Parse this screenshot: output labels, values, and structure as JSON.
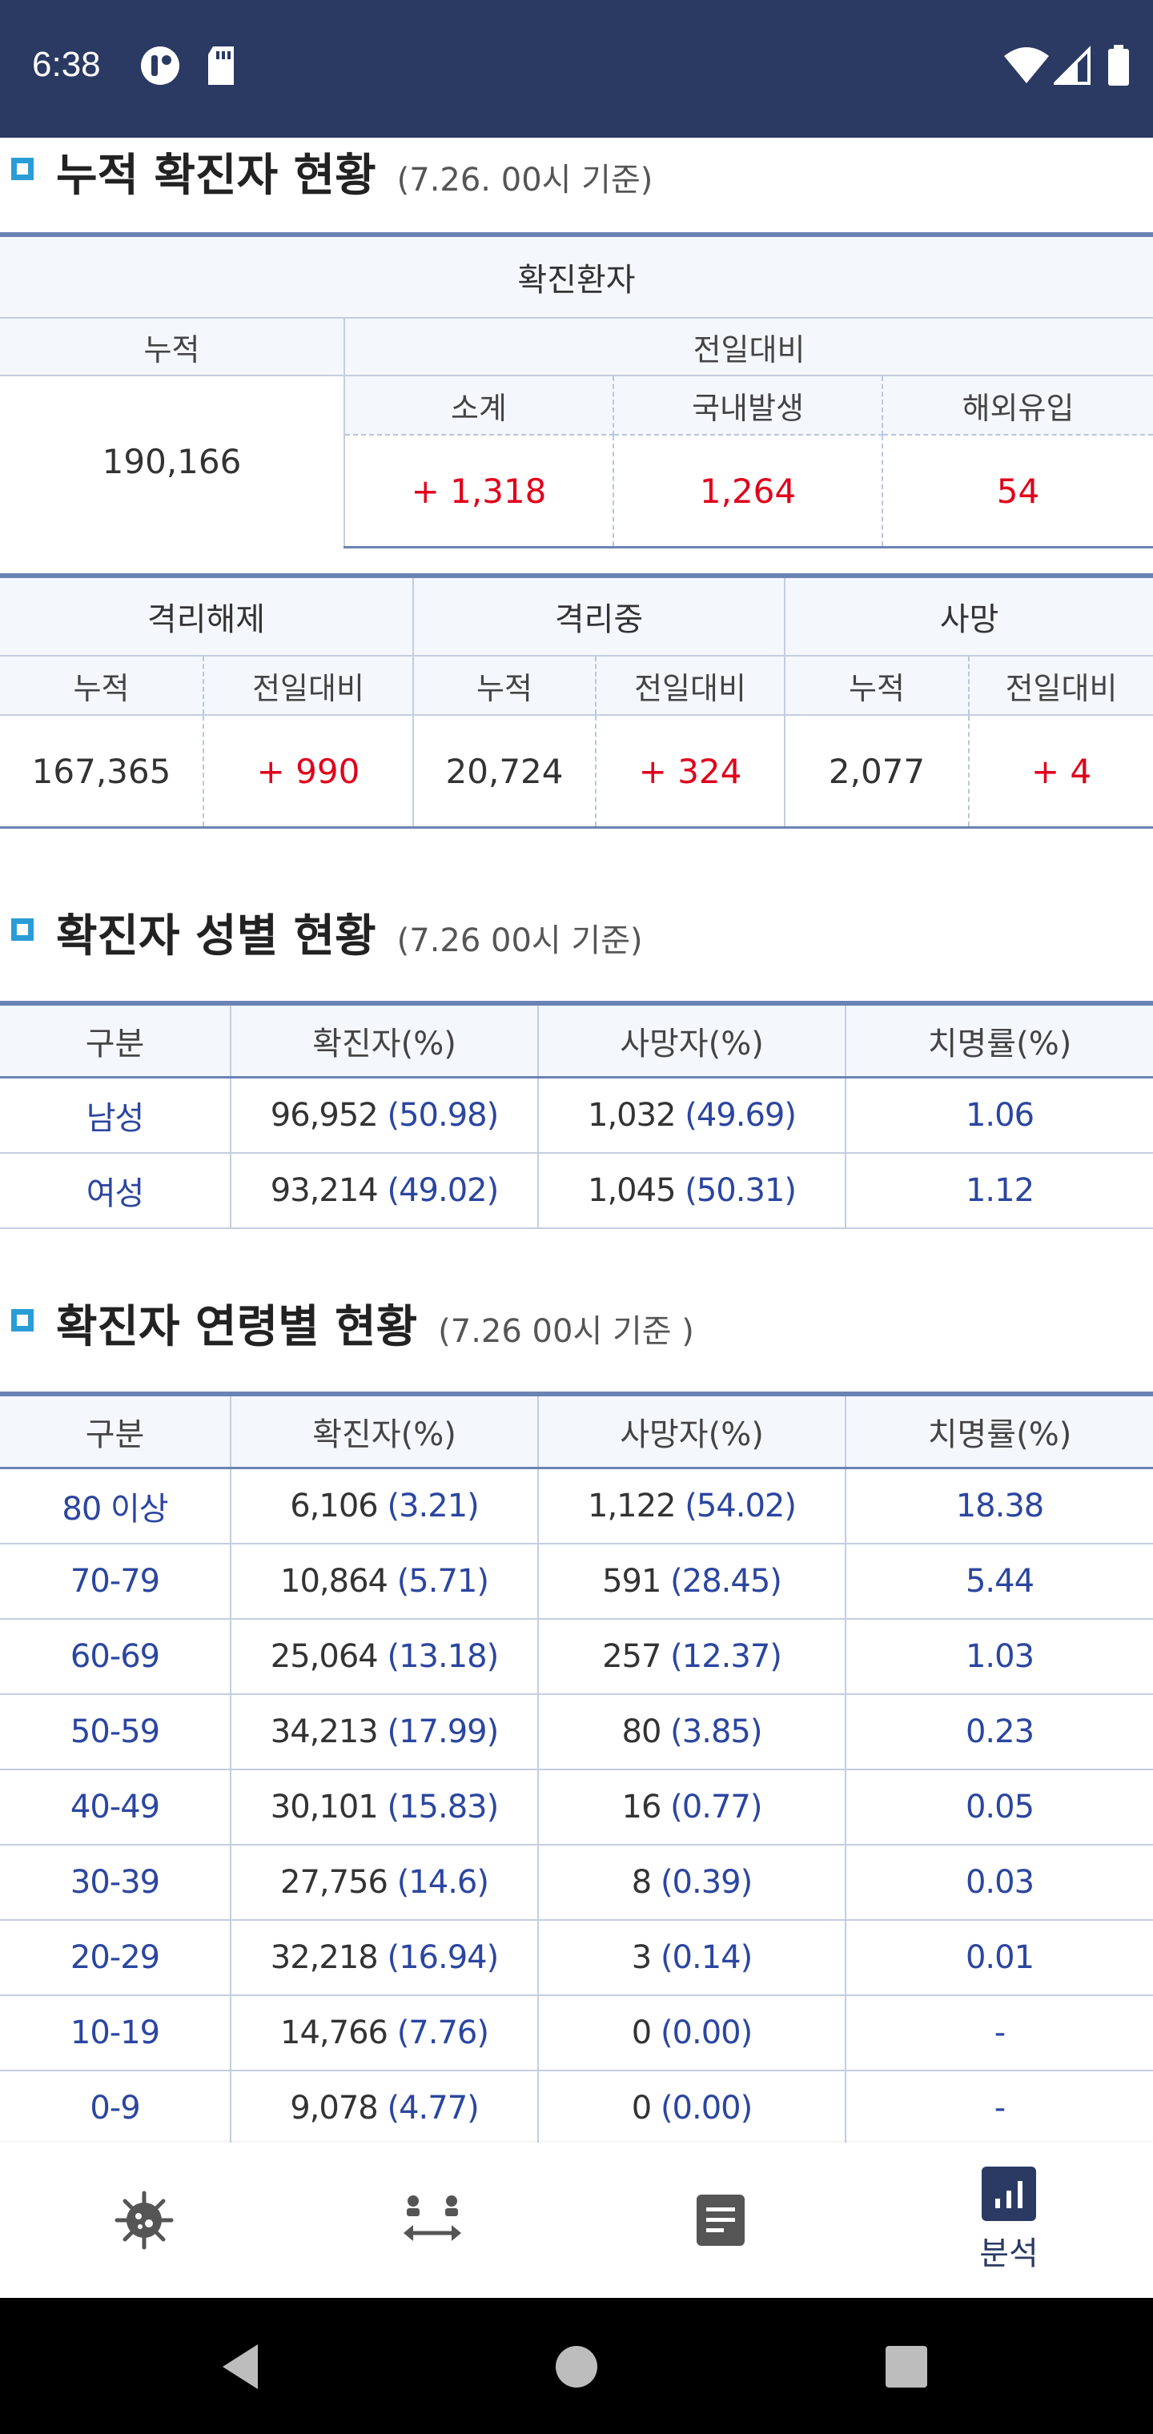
{
  "status_bar": {
    "time": "6:38"
  },
  "cumulative": {
    "title": "누적 확진자 현황",
    "date": "(7.26. 00시 기준)",
    "header": "확진환자",
    "col_cum": "누적",
    "col_prev": "전일대비",
    "col_sub": "소계",
    "col_domestic": "국내발생",
    "col_overseas": "해외유입",
    "total": "190,166",
    "sub": "+ 1,318",
    "domestic": "1,264",
    "overseas": "54"
  },
  "status": {
    "release": {
      "label": "격리해제",
      "cum": "167,365",
      "diff": "+ 990"
    },
    "isolation": {
      "label": "격리중",
      "cum": "20,724",
      "diff": "+ 324"
    },
    "death": {
      "label": "사망",
      "cum": "2,077",
      "diff": "+ 4"
    },
    "col_cum": "누적",
    "col_prev": "전일대비"
  },
  "gender": {
    "title": "확진자 성별 현황",
    "date": "(7.26 00시 기준)",
    "headers": [
      "구분",
      "확진자(%)",
      "사망자(%)",
      "치명률(%)"
    ],
    "rows": [
      {
        "label": "남성",
        "conf": "96,952",
        "conf_pct": "(50.98)",
        "death": "1,032",
        "death_pct": "(49.69)",
        "fatality": "1.06"
      },
      {
        "label": "여성",
        "conf": "93,214",
        "conf_pct": "(49.02)",
        "death": "1,045",
        "death_pct": "(50.31)",
        "fatality": "1.12"
      }
    ]
  },
  "age": {
    "title": "확진자 연령별 현황",
    "date": "(7.26 00시 기준 )",
    "headers": [
      "구분",
      "확진자(%)",
      "사망자(%)",
      "치명률(%)"
    ],
    "rows": [
      {
        "label": "80 이상",
        "conf": "6,106",
        "conf_pct": "(3.21)",
        "death": "1,122",
        "death_pct": "(54.02)",
        "fatality": "18.38"
      },
      {
        "label": "70-79",
        "conf": "10,864",
        "conf_pct": "(5.71)",
        "death": "591",
        "death_pct": "(28.45)",
        "fatality": "5.44"
      },
      {
        "label": "60-69",
        "conf": "25,064",
        "conf_pct": "(13.18)",
        "death": "257",
        "death_pct": "(12.37)",
        "fatality": "1.03"
      },
      {
        "label": "50-59",
        "conf": "34,213",
        "conf_pct": "(17.99)",
        "death": "80",
        "death_pct": "(3.85)",
        "fatality": "0.23"
      },
      {
        "label": "40-49",
        "conf": "30,101",
        "conf_pct": "(15.83)",
        "death": "16",
        "death_pct": "(0.77)",
        "fatality": "0.05"
      },
      {
        "label": "30-39",
        "conf": "27,756",
        "conf_pct": "(14.6)",
        "death": "8",
        "death_pct": "(0.39)",
        "fatality": "0.03"
      },
      {
        "label": "20-29",
        "conf": "32,218",
        "conf_pct": "(16.94)",
        "death": "3",
        "death_pct": "(0.14)",
        "fatality": "0.01"
      },
      {
        "label": "10-19",
        "conf": "14,766",
        "conf_pct": "(7.76)",
        "death": "0",
        "death_pct": "(0.00)",
        "fatality": "-"
      },
      {
        "label": "0-9",
        "conf": "9,078",
        "conf_pct": "(4.77)",
        "death": "0",
        "death_pct": "(0.00)",
        "fatality": "-"
      }
    ]
  },
  "nav": {
    "analysis_label": "분석"
  },
  "colors": {
    "header_bg": "#2a3a63",
    "accent_red": "#e0001b",
    "accent_blue": "#2b46a0",
    "table_line": "#6b83b4"
  }
}
